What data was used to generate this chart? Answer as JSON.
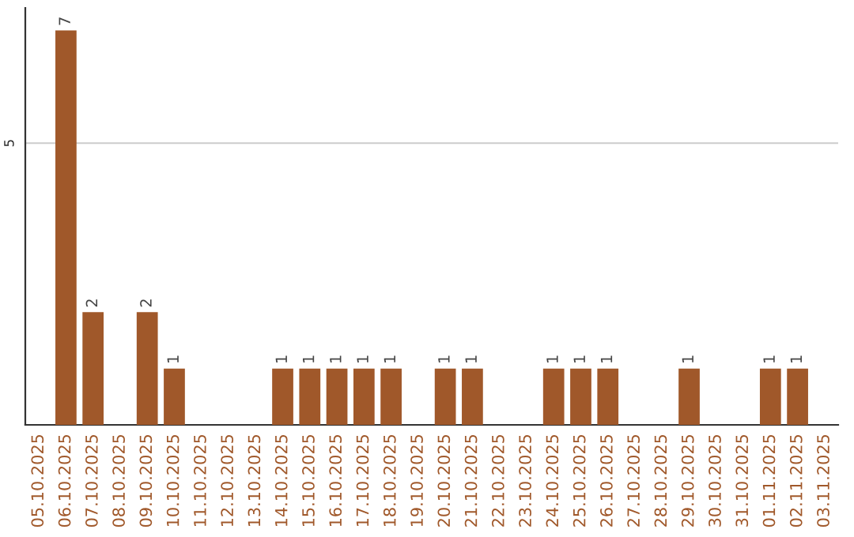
{
  "chart_data": {
    "type": "bar",
    "categories": [
      "05.10.2025",
      "06.10.2025",
      "07.10.2025",
      "08.10.2025",
      "09.10.2025",
      "10.10.2025",
      "11.10.2025",
      "12.10.2025",
      "13.10.2025",
      "14.10.2025",
      "15.10.2025",
      "16.10.2025",
      "17.10.2025",
      "18.10.2025",
      "19.10.2025",
      "20.10.2025",
      "21.10.2025",
      "22.10.2025",
      "23.10.2025",
      "24.10.2025",
      "25.10.2025",
      "26.10.2025",
      "27.10.2025",
      "28.10.2025",
      "29.10.2025",
      "30.10.2025",
      "31.10.2025",
      "01.11.2025",
      "02.11.2025",
      "03.11.2025"
    ],
    "values": [
      0,
      7,
      2,
      0,
      2,
      1,
      0,
      0,
      0,
      1,
      1,
      1,
      1,
      1,
      0,
      1,
      1,
      0,
      0,
      1,
      1,
      1,
      0,
      0,
      1,
      0,
      0,
      1,
      1,
      0
    ],
    "value_labels": [
      null,
      "7",
      "2",
      null,
      "2",
      "1",
      null,
      null,
      null,
      "1",
      "1",
      "1",
      "1",
      "1",
      null,
      "1",
      "1",
      null,
      null,
      "1",
      "1",
      "1",
      null,
      null,
      "1",
      null,
      null,
      "1",
      "1",
      null
    ],
    "color": "#a0582a",
    "ylim": [
      0,
      7.4
    ],
    "yticks": [
      5
    ],
    "grid": "y",
    "legend": false
  }
}
